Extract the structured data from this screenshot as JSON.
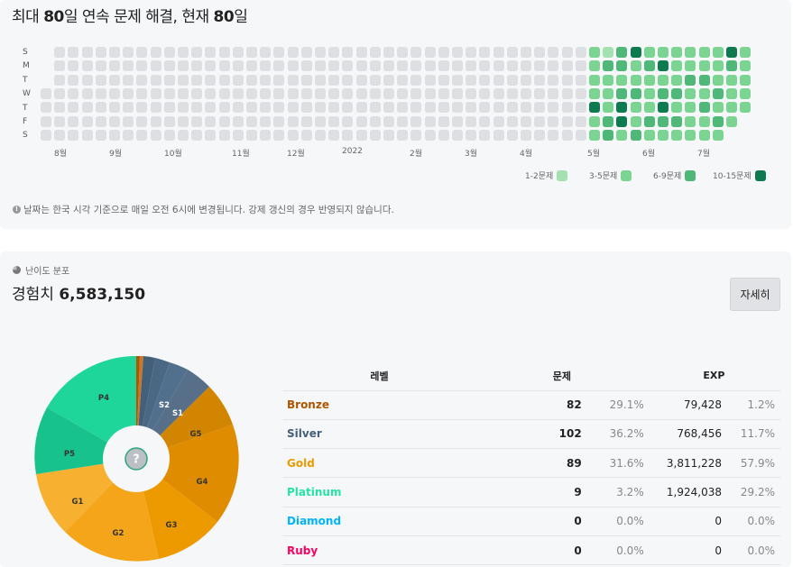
{
  "streak": {
    "title_parts": [
      "최대 ",
      "80",
      "일 연속 문제 해결, 현재 ",
      "80",
      "일"
    ],
    "day_labels": [
      "S",
      "M",
      "T",
      "W",
      "T",
      "F",
      "S"
    ],
    "months": [
      "8월",
      "9월",
      "10월",
      "11월",
      "12월",
      "2022",
      "2월",
      "3월",
      "4월",
      "5월",
      "6월",
      "7월"
    ],
    "legend": [
      {
        "label": "1-2문제",
        "color": "#a3e2b0"
      },
      {
        "label": "3-5문제",
        "color": "#7cd492"
      },
      {
        "label": "6-9문제",
        "color": "#4fb878"
      },
      {
        "label": "10-15문제",
        "color": "#0d7a4f"
      }
    ],
    "empty_color": "#dedfe3",
    "note": "날짜는 한국 시각 기준으로 매일 오전 6시에 변경됩니다. 강제 갱신의 경우 반영되지 않습니다."
  },
  "tier": {
    "heading": "난이도 분포",
    "exp_label": "경험치 ",
    "exp_value": "6,583,150",
    "detail_button": "자세히",
    "center_icon": "?",
    "table": {
      "headers": [
        "레벨",
        "문제",
        "EXP"
      ],
      "rows": [
        {
          "name": "Bronze",
          "color": "#ad5600",
          "count": "82",
          "count_pct": "29.1%",
          "exp": "79,428",
          "exp_pct": "1.2%"
        },
        {
          "name": "Silver",
          "color": "#435f7a",
          "count": "102",
          "count_pct": "36.2%",
          "exp": "768,456",
          "exp_pct": "11.7%"
        },
        {
          "name": "Gold",
          "color": "#ec9a00",
          "count": "89",
          "count_pct": "31.6%",
          "exp": "3,811,228",
          "exp_pct": "57.9%"
        },
        {
          "name": "Platinum",
          "color": "#27e2a4",
          "count": "9",
          "count_pct": "3.2%",
          "exp": "1,924,038",
          "exp_pct": "29.2%"
        },
        {
          "name": "Diamond",
          "color": "#00b4fc",
          "count": "0",
          "count_pct": "0.0%",
          "exp": "0",
          "exp_pct": "0.0%"
        },
        {
          "name": "Ruby",
          "color": "#ff0062",
          "count": "0",
          "count_pct": "0.0%",
          "exp": "0",
          "exp_pct": "0.0%"
        }
      ]
    }
  }
}
